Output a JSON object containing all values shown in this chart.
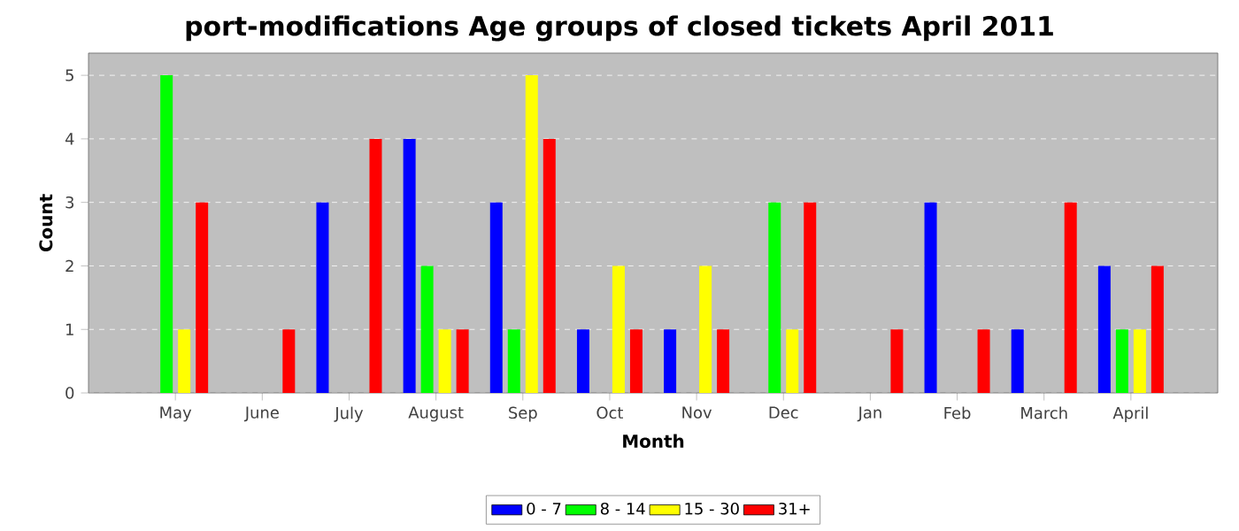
{
  "chart_data": {
    "type": "bar",
    "title": "port-modifications Age groups of closed tickets April 2011",
    "xlabel": "Month",
    "ylabel": "Count",
    "categories": [
      "May",
      "June",
      "July",
      "August",
      "Sep",
      "Oct",
      "Nov",
      "Dec",
      "Jan",
      "Feb",
      "March",
      "April"
    ],
    "series": [
      {
        "name": "0 - 7",
        "color": "#0000ff",
        "values": [
          0,
          0,
          3,
          4,
          3,
          1,
          1,
          0,
          0,
          3,
          1,
          2
        ]
      },
      {
        "name": "8 - 14",
        "color": "#00ff00",
        "values": [
          5,
          0,
          0,
          2,
          1,
          0,
          0,
          3,
          0,
          0,
          0,
          1
        ]
      },
      {
        "name": "15 - 30",
        "color": "#ffff00",
        "values": [
          1,
          0,
          0,
          1,
          5,
          2,
          2,
          1,
          0,
          0,
          0,
          1
        ]
      },
      {
        "name": "31+",
        "color": "#ff0000",
        "values": [
          3,
          1,
          4,
          1,
          4,
          1,
          1,
          3,
          1,
          1,
          3,
          2
        ]
      }
    ],
    "ylim": [
      0,
      5.35
    ],
    "yticks": [
      0,
      1,
      2,
      3,
      4,
      5
    ],
    "grid": "y",
    "legend": "bottom"
  }
}
